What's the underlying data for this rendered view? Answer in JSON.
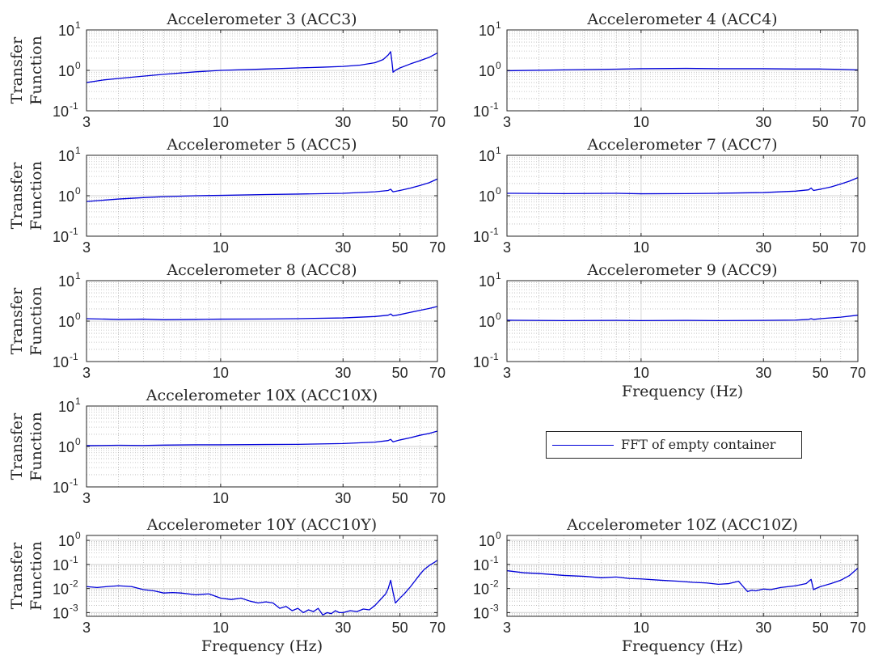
{
  "chart_data": [
    {
      "type": "line",
      "title": "Accelerometer 3 (ACC3)",
      "ylabel": [
        "Transfer",
        "Function"
      ],
      "xlabel": "",
      "xscale": "log",
      "yscale": "log",
      "xlim": [
        3,
        70
      ],
      "ylim": [
        0.1,
        10
      ],
      "xticks": [
        3,
        10,
        30,
        50,
        70
      ],
      "yticks": [
        {
          "base": "10",
          "exp": "-1"
        },
        {
          "base": "10",
          "exp": "0"
        },
        {
          "base": "10",
          "exp": "1"
        }
      ],
      "grid": true,
      "series": [
        {
          "color": "#0000d8",
          "x": [
            3,
            3.5,
            4,
            5,
            6,
            8,
            10,
            15,
            20,
            25,
            30,
            35,
            40,
            43,
            45,
            46,
            46.5,
            47,
            48,
            50,
            55,
            60,
            65,
            70
          ],
          "y": [
            0.5,
            0.58,
            0.63,
            0.72,
            0.8,
            0.92,
            1.0,
            1.08,
            1.15,
            1.2,
            1.25,
            1.35,
            1.55,
            1.85,
            2.4,
            2.9,
            1.7,
            0.9,
            1.0,
            1.15,
            1.45,
            1.75,
            2.1,
            2.7
          ]
        }
      ]
    },
    {
      "type": "line",
      "title": "Accelerometer 4 (ACC4)",
      "ylabel": [],
      "xlabel": "",
      "xscale": "log",
      "yscale": "log",
      "xlim": [
        3,
        70
      ],
      "ylim": [
        0.1,
        10
      ],
      "xticks": [
        3,
        10,
        30,
        50,
        70
      ],
      "yticks": [
        {
          "base": "10",
          "exp": "-1"
        },
        {
          "base": "10",
          "exp": "0"
        },
        {
          "base": "10",
          "exp": "1"
        }
      ],
      "grid": true,
      "series": [
        {
          "color": "#0000d8",
          "x": [
            3,
            5,
            8,
            10,
            15,
            20,
            30,
            40,
            50,
            60,
            70
          ],
          "y": [
            0.98,
            1.03,
            1.07,
            1.1,
            1.12,
            1.1,
            1.1,
            1.08,
            1.08,
            1.06,
            1.03
          ]
        }
      ]
    },
    {
      "type": "line",
      "title": "Accelerometer 5 (ACC5)",
      "ylabel": [
        "Transfer",
        "Function"
      ],
      "xlabel": "",
      "xscale": "log",
      "yscale": "log",
      "xlim": [
        3,
        70
      ],
      "ylim": [
        0.1,
        10
      ],
      "xticks": [
        3,
        10,
        30,
        50,
        70
      ],
      "yticks": [
        {
          "base": "10",
          "exp": "-1"
        },
        {
          "base": "10",
          "exp": "0"
        },
        {
          "base": "10",
          "exp": "1"
        }
      ],
      "grid": true,
      "series": [
        {
          "color": "#0000d8",
          "x": [
            3,
            4,
            5,
            6,
            8,
            10,
            15,
            20,
            30,
            40,
            45,
            46,
            47,
            50,
            55,
            60,
            65,
            70
          ],
          "y": [
            0.72,
            0.83,
            0.9,
            0.95,
            1.0,
            1.02,
            1.07,
            1.1,
            1.15,
            1.25,
            1.35,
            1.45,
            1.25,
            1.35,
            1.55,
            1.8,
            2.1,
            2.6
          ]
        }
      ]
    },
    {
      "type": "line",
      "title": "Accelerometer 7 (ACC7)",
      "ylabel": [],
      "xlabel": "",
      "xscale": "log",
      "yscale": "log",
      "xlim": [
        3,
        70
      ],
      "ylim": [
        0.1,
        10
      ],
      "xticks": [
        3,
        10,
        30,
        50,
        70
      ],
      "yticks": [
        {
          "base": "10",
          "exp": "-1"
        },
        {
          "base": "10",
          "exp": "0"
        },
        {
          "base": "10",
          "exp": "1"
        }
      ],
      "grid": true,
      "series": [
        {
          "color": "#0000d8",
          "x": [
            3,
            5,
            8,
            10,
            15,
            20,
            30,
            40,
            45,
            46,
            47,
            50,
            55,
            60,
            65,
            70
          ],
          "y": [
            1.15,
            1.13,
            1.15,
            1.12,
            1.13,
            1.15,
            1.2,
            1.3,
            1.4,
            1.55,
            1.35,
            1.45,
            1.65,
            1.95,
            2.3,
            2.8
          ]
        }
      ]
    },
    {
      "type": "line",
      "title": "Accelerometer 8 (ACC8)",
      "ylabel": [
        "Transfer",
        "Function"
      ],
      "xlabel": "",
      "xscale": "log",
      "yscale": "log",
      "xlim": [
        3,
        70
      ],
      "ylim": [
        0.1,
        10
      ],
      "xticks": [
        3,
        10,
        30,
        50,
        70
      ],
      "yticks": [
        {
          "base": "10",
          "exp": "-1"
        },
        {
          "base": "10",
          "exp": "0"
        },
        {
          "base": "10",
          "exp": "1"
        }
      ],
      "grid": true,
      "series": [
        {
          "color": "#0000d8",
          "x": [
            3,
            4,
            5,
            6,
            8,
            10,
            15,
            20,
            30,
            40,
            45,
            46,
            47,
            50,
            55,
            60,
            65,
            70
          ],
          "y": [
            1.15,
            1.1,
            1.12,
            1.08,
            1.1,
            1.12,
            1.13,
            1.15,
            1.2,
            1.3,
            1.4,
            1.5,
            1.35,
            1.45,
            1.65,
            1.85,
            2.05,
            2.3
          ]
        }
      ]
    },
    {
      "type": "line",
      "title": "Accelerometer 9 (ACC9)",
      "ylabel": [],
      "xlabel": "Frequency (Hz)",
      "xscale": "log",
      "yscale": "log",
      "xlim": [
        3,
        70
      ],
      "ylim": [
        0.1,
        10
      ],
      "xticks": [
        3,
        10,
        30,
        50,
        70
      ],
      "yticks": [
        {
          "base": "10",
          "exp": "-1"
        },
        {
          "base": "10",
          "exp": "0"
        },
        {
          "base": "10",
          "exp": "1"
        }
      ],
      "grid": true,
      "series": [
        {
          "color": "#0000d8",
          "x": [
            3,
            5,
            8,
            10,
            15,
            20,
            30,
            40,
            45,
            46,
            47,
            50,
            60,
            70
          ],
          "y": [
            1.05,
            1.03,
            1.04,
            1.03,
            1.04,
            1.03,
            1.04,
            1.06,
            1.1,
            1.15,
            1.1,
            1.15,
            1.25,
            1.4
          ]
        }
      ]
    },
    {
      "type": "line",
      "title": "Accelerometer 10X (ACC10X)",
      "ylabel": [
        "Transfer",
        "Function"
      ],
      "xlabel": "",
      "xscale": "log",
      "yscale": "log",
      "xlim": [
        3,
        70
      ],
      "ylim": [
        0.1,
        10
      ],
      "xticks": [
        3,
        10,
        30,
        50,
        70
      ],
      "yticks": [
        {
          "base": "10",
          "exp": "-1"
        },
        {
          "base": "10",
          "exp": "0"
        },
        {
          "base": "10",
          "exp": "1"
        }
      ],
      "grid": true,
      "series": [
        {
          "color": "#0000d8",
          "x": [
            3,
            4,
            5,
            6,
            8,
            10,
            15,
            20,
            30,
            40,
            45,
            46,
            47,
            50,
            55,
            60,
            65,
            70
          ],
          "y": [
            1.05,
            1.07,
            1.06,
            1.08,
            1.1,
            1.1,
            1.12,
            1.13,
            1.18,
            1.28,
            1.4,
            1.5,
            1.3,
            1.45,
            1.65,
            1.9,
            2.1,
            2.4
          ]
        }
      ]
    },
    {
      "type": "line",
      "title": "Accelerometer 10Y (ACC10Y)",
      "ylabel": [
        "Transfer",
        "Function"
      ],
      "xlabel": "Frequency (Hz)",
      "xscale": "log",
      "yscale": "log",
      "xlim": [
        3,
        70
      ],
      "ylim": [
        0.0007,
        1.6
      ],
      "xticks": [
        3,
        10,
        30,
        50,
        70
      ],
      "yticks": [
        {
          "base": "10",
          "exp": "-3"
        },
        {
          "base": "10",
          "exp": "-2"
        },
        {
          "base": "10",
          "exp": "-1"
        },
        {
          "base": "10",
          "exp": "0"
        }
      ],
      "grid": true,
      "series": [
        {
          "color": "#0000d8",
          "x": [
            3,
            3.3,
            3.6,
            4,
            4.5,
            5,
            5.5,
            6,
            6.5,
            7,
            8,
            9,
            10,
            11,
            12,
            13,
            14,
            15,
            16,
            17,
            18,
            19,
            20,
            21,
            22,
            23,
            24,
            25,
            26,
            27,
            28,
            29,
            30,
            32,
            34,
            36,
            38,
            40,
            42,
            44,
            45,
            46,
            47,
            48,
            50,
            52,
            55,
            58,
            60,
            62,
            65,
            68,
            70
          ],
          "y": [
            0.012,
            0.011,
            0.012,
            0.013,
            0.012,
            0.009,
            0.008,
            0.0065,
            0.0068,
            0.0065,
            0.0055,
            0.006,
            0.004,
            0.0035,
            0.004,
            0.003,
            0.0025,
            0.0028,
            0.0025,
            0.0015,
            0.0018,
            0.0012,
            0.0015,
            0.001,
            0.0013,
            0.0011,
            0.0015,
            0.0008,
            0.001,
            0.0009,
            0.0012,
            0.001,
            0.001,
            0.0012,
            0.0011,
            0.0014,
            0.0013,
            0.002,
            0.0035,
            0.006,
            0.01,
            0.022,
            0.007,
            0.0025,
            0.004,
            0.006,
            0.012,
            0.025,
            0.04,
            0.06,
            0.09,
            0.12,
            0.15
          ]
        }
      ]
    },
    {
      "type": "line",
      "title": "Accelerometer 10Z (ACC10Z)",
      "ylabel": [],
      "xlabel": "Frequency (Hz)",
      "xscale": "log",
      "yscale": "log",
      "xlim": [
        3,
        70
      ],
      "ylim": [
        0.0007,
        1.6
      ],
      "xticks": [
        3,
        10,
        30,
        50,
        70
      ],
      "yticks": [
        {
          "base": "10",
          "exp": "-3"
        },
        {
          "base": "10",
          "exp": "-2"
        },
        {
          "base": "10",
          "exp": "-1"
        },
        {
          "base": "10",
          "exp": "0"
        }
      ],
      "grid": true,
      "series": [
        {
          "color": "#0000d8",
          "x": [
            3,
            3.5,
            4,
            5,
            6,
            7,
            8,
            9,
            10,
            12,
            14,
            16,
            18,
            20,
            22,
            24,
            25,
            26,
            27,
            28,
            30,
            32,
            35,
            40,
            44,
            46,
            47,
            48,
            50,
            55,
            60,
            65,
            70
          ],
          "y": [
            0.055,
            0.045,
            0.042,
            0.035,
            0.032,
            0.028,
            0.03,
            0.026,
            0.025,
            0.022,
            0.02,
            0.018,
            0.017,
            0.015,
            0.016,
            0.02,
            0.012,
            0.0075,
            0.0085,
            0.008,
            0.0095,
            0.009,
            0.011,
            0.013,
            0.016,
            0.024,
            0.009,
            0.01,
            0.012,
            0.016,
            0.022,
            0.035,
            0.07
          ]
        }
      ]
    }
  ],
  "legend": {
    "label": "FFT of empty container",
    "color": "#0000d8",
    "placement": "middle-right"
  }
}
